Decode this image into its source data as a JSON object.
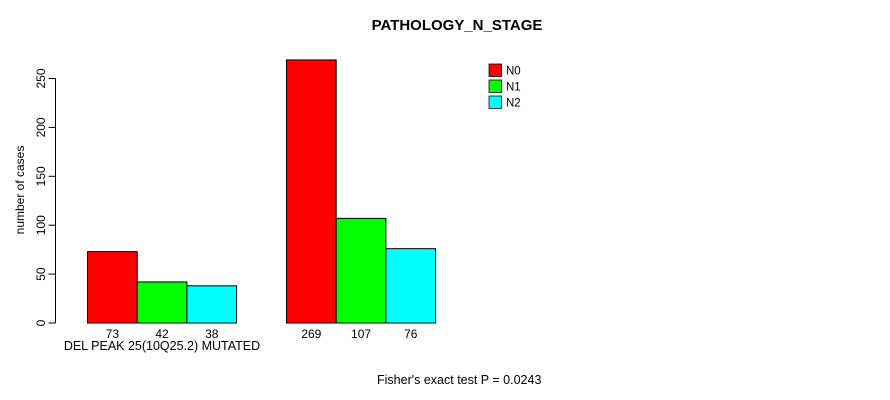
{
  "chart_data": {
    "type": "bar",
    "title": "PATHOLOGY_N_STAGE",
    "ylabel": "number of cases",
    "footnote": "Fisher's exact test P = 0.0243",
    "ylim": [
      0,
      250
    ],
    "yticks": [
      0,
      50,
      100,
      150,
      200,
      250
    ],
    "grid": false,
    "legend_position": "top-right",
    "bar_value_labels": true,
    "groups": [
      {
        "label": "DEL PEAK 25(10Q25.2) MUTATED",
        "values": [
          73,
          42,
          38
        ]
      },
      {
        "label": "",
        "values": [
          269,
          107,
          76
        ]
      }
    ],
    "series": [
      {
        "name": "N0",
        "color": "#ff0000"
      },
      {
        "name": "N1",
        "color": "#00ff00"
      },
      {
        "name": "N2",
        "color": "#00ffff"
      }
    ],
    "axis_color": "#000000",
    "bar_border_color": "#000000"
  }
}
